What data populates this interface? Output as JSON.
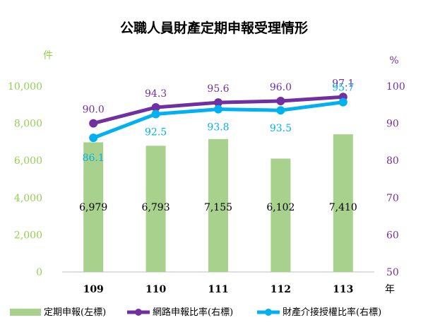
{
  "chart_data": {
    "type": "bar+line",
    "title": "公職人員財產定期申報受理情形",
    "left_unit": "件",
    "right_unit": "%",
    "x_unit": "年",
    "categories": [
      "109",
      "110",
      "111",
      "112",
      "113"
    ],
    "left_axis": {
      "min": 0,
      "max": 10000,
      "step": 2000,
      "ticks": [
        "0",
        "2,000",
        "4,000",
        "6,000",
        "8,000",
        "10,000"
      ]
    },
    "right_axis": {
      "min": 50,
      "max": 100,
      "step": 10,
      "ticks": [
        "50",
        "60",
        "70",
        "80",
        "90",
        "100"
      ]
    },
    "grid": false,
    "legend_position": "bottom",
    "series": [
      {
        "name": "定期申報(左標)",
        "kind": "bar",
        "axis": "left",
        "color": "#a9d18e",
        "values": [
          6979,
          6793,
          7155,
          6102,
          7410
        ],
        "labels": [
          "6,979",
          "6,793",
          "7,155",
          "6,102",
          "7,410"
        ]
      },
      {
        "name": "網路申報比率(右標)",
        "kind": "line",
        "axis": "right",
        "color": "#7030a0",
        "values": [
          90.0,
          94.3,
          95.6,
          96.0,
          97.1
        ],
        "labels": [
          "90.0",
          "94.3",
          "95.6",
          "96.0",
          "97.1"
        ]
      },
      {
        "name": "財產介接授權比率(右標)",
        "kind": "line",
        "axis": "right",
        "color": "#00b0f0",
        "values": [
          86.1,
          92.5,
          93.8,
          93.5,
          95.7
        ],
        "labels": [
          "86.1",
          "92.5",
          "93.8",
          "93.5",
          "95.7"
        ]
      }
    ],
    "colors": {
      "left_axis_text": "#92d050",
      "right_axis_text": "#7030a0",
      "axis_line": "#bfbfbf"
    }
  }
}
